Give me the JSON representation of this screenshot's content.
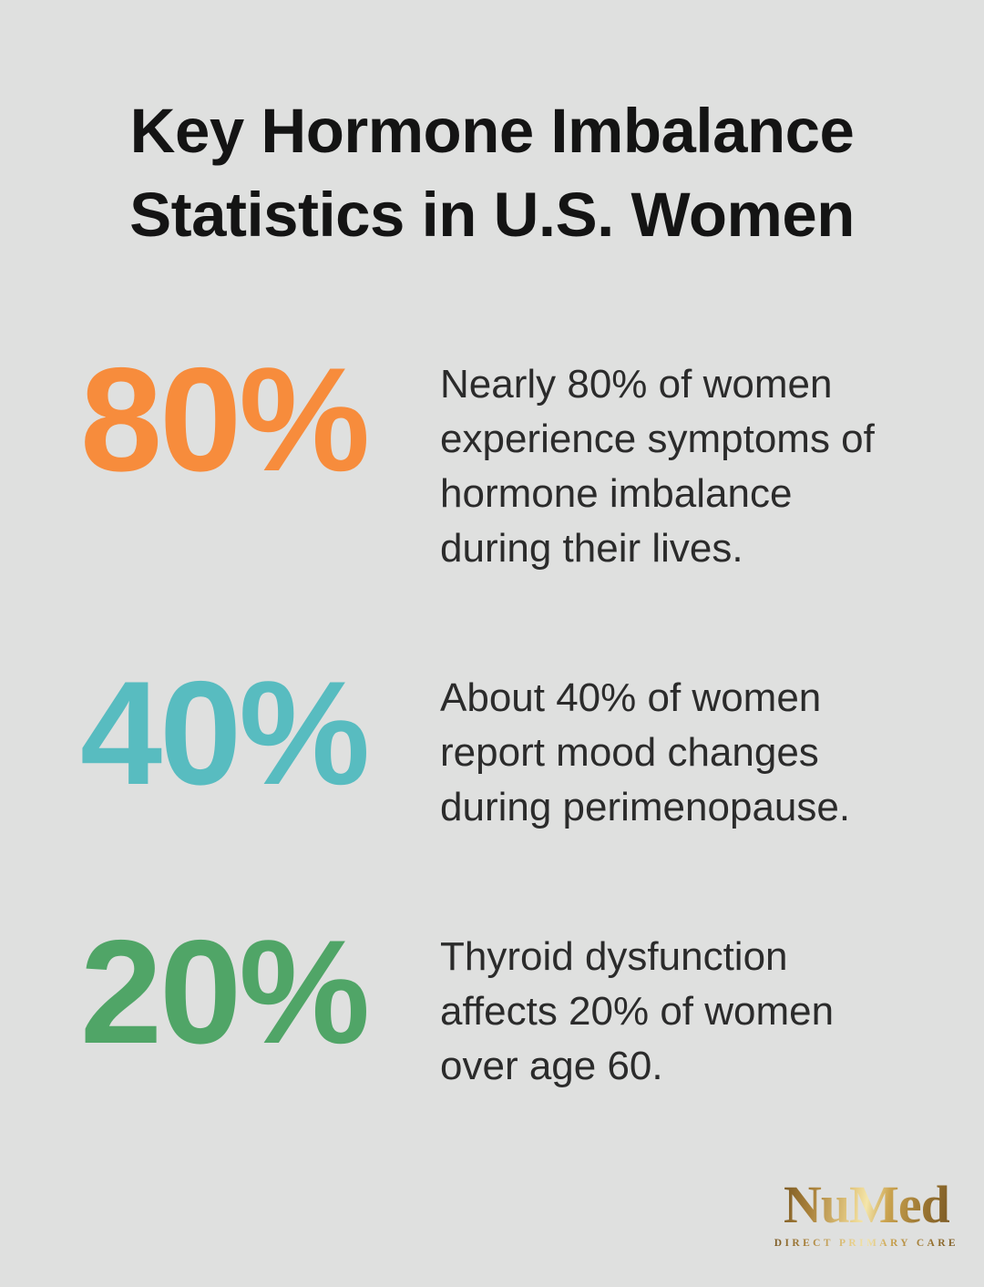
{
  "page": {
    "background": "#dfe0df",
    "text_color": "#2b2b2b"
  },
  "title": {
    "line1": "Key Hormone Imbalance",
    "line2": "Statistics in U.S. Women",
    "color": "#141414"
  },
  "stats": [
    {
      "value": "80%",
      "color": "#f78c3c",
      "description": "Nearly 80% of women experience symptoms of hormone imbalance during their lives."
    },
    {
      "value": "40%",
      "color": "#58bcc0",
      "description": "About 40% of women report mood changes during perimenopause."
    },
    {
      "value": "20%",
      "color": "#50a567",
      "description": "Thyroid dysfunction affects 20% of women over age 60."
    }
  ],
  "logo": {
    "brand": "NuMed",
    "registered": "®",
    "tagline": "DIRECT PRIMARY CARE",
    "gold": "#a57f35"
  },
  "chart_data": {
    "type": "table",
    "title": "Key Hormone Imbalance Statistics in U.S. Women",
    "categories": [
      "Women who experience symptoms of hormone imbalance during their lives",
      "Women who report mood changes during perimenopause",
      "Women over age 60 affected by thyroid dysfunction"
    ],
    "values": [
      80,
      40,
      20
    ],
    "unit": "%",
    "colors": [
      "#f78c3c",
      "#58bcc0",
      "#50a567"
    ],
    "legend_position": "none",
    "grid": false
  }
}
